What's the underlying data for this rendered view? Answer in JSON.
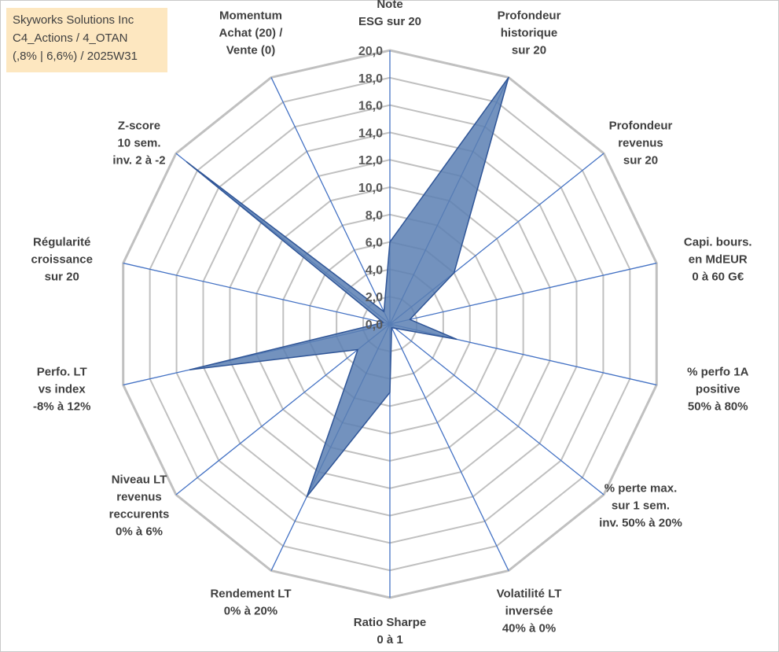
{
  "title_lines": [
    "Skyworks Solutions Inc",
    "C4_Actions / 4_OTAN",
    "(,8% | 6,6%) / 2025W31"
  ],
  "chart_data": {
    "type": "radar",
    "rmin": 0,
    "rmax": 20,
    "tick_step": 2,
    "tick_labels": [
      "0,0",
      "2,0",
      "4,0",
      "6,0",
      "8,0",
      "10,0",
      "12,0",
      "14,0",
      "16,0",
      "18,0",
      "20,0"
    ],
    "axes": [
      [
        "Note",
        "ESG sur 20"
      ],
      [
        "Profondeur",
        "historique",
        "sur 20"
      ],
      [
        "Profondeur",
        "revenus",
        "sur 20"
      ],
      [
        "Capi. bours.",
        "en MdEUR",
        "0 à 60 G€"
      ],
      [
        "% perfo 1A",
        "positive",
        "50% à 80%"
      ],
      [
        "% perte max.",
        "sur 1 sem.",
        "inv. 50% à 20%"
      ],
      [
        "Volatilité LT",
        "inversée",
        "40% à 0%"
      ],
      [
        "Ratio Sharpe",
        "0 à 1"
      ],
      [
        "Rendement LT",
        "0% à 20%"
      ],
      [
        "Niveau LT",
        "revenus",
        "reccurents",
        "0% à 6%"
      ],
      [
        "Perfo. LT",
        "vs index",
        "-8% à 12%"
      ],
      [
        "Régularité",
        "croissance",
        "sur 20"
      ],
      [
        "Z-score",
        "10 sem.",
        "inv. 2 à -2"
      ],
      [
        "Momentum",
        "Achat (20) /",
        "Vente (0)"
      ]
    ],
    "series": [
      {
        "values": [
          6.0,
          20.0,
          6.0,
          1.5,
          5.0,
          0.5,
          0.3,
          5.0,
          14.0,
          3.0,
          15.0,
          0.5,
          19.0,
          1.0
        ]
      }
    ],
    "fill_color": "#5b7fb3",
    "axis_color": "#4472c4",
    "grid_color": "#c0c0c0",
    "grid_shape": "polygon",
    "legend": "none"
  }
}
